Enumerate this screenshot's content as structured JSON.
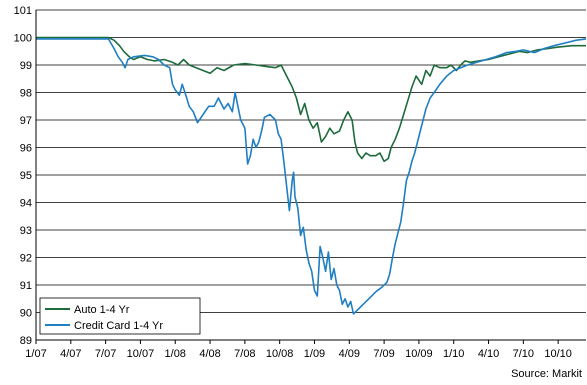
{
  "chart_data": {
    "type": "line",
    "title": "",
    "xlabel": "",
    "ylabel": "",
    "ylim": [
      89,
      101
    ],
    "yticks": [
      89,
      90,
      91,
      92,
      93,
      94,
      95,
      96,
      97,
      98,
      99,
      100,
      101
    ],
    "xlim": [
      2007.0,
      2010.95
    ],
    "xticks": [
      {
        "label": "1/07",
        "value": 2007.0
      },
      {
        "label": "4/07",
        "value": 2007.25
      },
      {
        "label": "7/07",
        "value": 2007.5
      },
      {
        "label": "10/07",
        "value": 2007.75
      },
      {
        "label": "1/08",
        "value": 2008.0
      },
      {
        "label": "4/08",
        "value": 2008.25
      },
      {
        "label": "7/08",
        "value": 2008.5
      },
      {
        "label": "10/08",
        "value": 2008.75
      },
      {
        "label": "1/09",
        "value": 2009.0
      },
      {
        "label": "4/09",
        "value": 2009.25
      },
      {
        "label": "7/09",
        "value": 2009.5
      },
      {
        "label": "10/09",
        "value": 2009.75
      },
      {
        "label": "1/10",
        "value": 2010.0
      },
      {
        "label": "4/10",
        "value": 2010.25
      },
      {
        "label": "7/10",
        "value": 2010.5
      },
      {
        "label": "10/10",
        "value": 2010.75
      }
    ],
    "grid": {
      "horizontal": true,
      "vertical": false
    },
    "legend_position": "bottom-left",
    "source_note": "Source: Markit",
    "series": [
      {
        "name": "Auto 1-4 Yr",
        "color": "#1e6b3c",
        "points": [
          [
            2007.0,
            100.0
          ],
          [
            2007.3,
            100.0
          ],
          [
            2007.52,
            100.0
          ],
          [
            2007.56,
            99.9
          ],
          [
            2007.6,
            99.7
          ],
          [
            2007.63,
            99.5
          ],
          [
            2007.67,
            99.3
          ],
          [
            2007.7,
            99.2
          ],
          [
            2007.75,
            99.3
          ],
          [
            2007.8,
            99.2
          ],
          [
            2007.85,
            99.15
          ],
          [
            2007.92,
            99.2
          ],
          [
            2007.98,
            99.1
          ],
          [
            2008.02,
            99.0
          ],
          [
            2008.06,
            99.2
          ],
          [
            2008.1,
            99.0
          ],
          [
            2008.15,
            98.9
          ],
          [
            2008.2,
            98.8
          ],
          [
            2008.25,
            98.7
          ],
          [
            2008.3,
            98.9
          ],
          [
            2008.35,
            98.8
          ],
          [
            2008.42,
            99.0
          ],
          [
            2008.5,
            99.05
          ],
          [
            2008.58,
            99.0
          ],
          [
            2008.65,
            98.95
          ],
          [
            2008.72,
            98.9
          ],
          [
            2008.76,
            99.0
          ],
          [
            2008.8,
            98.6
          ],
          [
            2008.84,
            98.2
          ],
          [
            2008.87,
            97.8
          ],
          [
            2008.9,
            97.2
          ],
          [
            2008.93,
            97.6
          ],
          [
            2008.96,
            97.0
          ],
          [
            2008.99,
            96.7
          ],
          [
            2009.02,
            96.9
          ],
          [
            2009.05,
            96.2
          ],
          [
            2009.08,
            96.4
          ],
          [
            2009.11,
            96.7
          ],
          [
            2009.14,
            96.5
          ],
          [
            2009.18,
            96.6
          ],
          [
            2009.21,
            97.0
          ],
          [
            2009.24,
            97.3
          ],
          [
            2009.27,
            97.0
          ],
          [
            2009.29,
            96.2
          ],
          [
            2009.31,
            95.8
          ],
          [
            2009.34,
            95.6
          ],
          [
            2009.37,
            95.8
          ],
          [
            2009.4,
            95.7
          ],
          [
            2009.44,
            95.7
          ],
          [
            2009.47,
            95.8
          ],
          [
            2009.5,
            95.5
          ],
          [
            2009.53,
            95.6
          ],
          [
            2009.55,
            96.0
          ],
          [
            2009.58,
            96.3
          ],
          [
            2009.61,
            96.7
          ],
          [
            2009.64,
            97.2
          ],
          [
            2009.67,
            97.7
          ],
          [
            2009.7,
            98.2
          ],
          [
            2009.73,
            98.6
          ],
          [
            2009.77,
            98.3
          ],
          [
            2009.8,
            98.8
          ],
          [
            2009.83,
            98.6
          ],
          [
            2009.86,
            99.0
          ],
          [
            2009.9,
            98.9
          ],
          [
            2009.95,
            98.9
          ],
          [
            2009.98,
            99.0
          ],
          [
            2010.02,
            98.8
          ],
          [
            2010.05,
            99.0
          ],
          [
            2010.08,
            99.15
          ],
          [
            2010.12,
            99.1
          ],
          [
            2010.18,
            99.15
          ],
          [
            2010.25,
            99.2
          ],
          [
            2010.32,
            99.3
          ],
          [
            2010.4,
            99.4
          ],
          [
            2010.47,
            99.5
          ],
          [
            2010.53,
            99.45
          ],
          [
            2010.6,
            99.55
          ],
          [
            2010.68,
            99.6
          ],
          [
            2010.75,
            99.65
          ],
          [
            2010.85,
            99.7
          ],
          [
            2010.95,
            99.7
          ]
        ]
      },
      {
        "name": "Credit Card 1-4 Yr",
        "color": "#1f7fc2",
        "points": [
          [
            2007.0,
            99.95
          ],
          [
            2007.3,
            99.95
          ],
          [
            2007.52,
            99.95
          ],
          [
            2007.56,
            99.6
          ],
          [
            2007.59,
            99.3
          ],
          [
            2007.62,
            99.1
          ],
          [
            2007.64,
            98.9
          ],
          [
            2007.66,
            99.2
          ],
          [
            2007.7,
            99.3
          ],
          [
            2007.78,
            99.35
          ],
          [
            2007.84,
            99.3
          ],
          [
            2007.88,
            99.2
          ],
          [
            2007.92,
            99.0
          ],
          [
            2007.96,
            98.9
          ],
          [
            2007.98,
            98.3
          ],
          [
            2008.0,
            98.1
          ],
          [
            2008.03,
            97.9
          ],
          [
            2008.05,
            98.3
          ],
          [
            2008.07,
            98.0
          ],
          [
            2008.1,
            97.5
          ],
          [
            2008.13,
            97.3
          ],
          [
            2008.16,
            96.9
          ],
          [
            2008.2,
            97.2
          ],
          [
            2008.24,
            97.5
          ],
          [
            2008.28,
            97.5
          ],
          [
            2008.31,
            97.8
          ],
          [
            2008.35,
            97.4
          ],
          [
            2008.38,
            97.6
          ],
          [
            2008.41,
            97.3
          ],
          [
            2008.43,
            98.0
          ],
          [
            2008.45,
            97.5
          ],
          [
            2008.47,
            97.0
          ],
          [
            2008.5,
            96.7
          ],
          [
            2008.52,
            95.4
          ],
          [
            2008.54,
            95.7
          ],
          [
            2008.56,
            96.3
          ],
          [
            2008.58,
            96.0
          ],
          [
            2008.6,
            96.2
          ],
          [
            2008.62,
            96.6
          ],
          [
            2008.64,
            97.1
          ],
          [
            2008.68,
            97.2
          ],
          [
            2008.72,
            97.0
          ],
          [
            2008.74,
            96.5
          ],
          [
            2008.76,
            96.3
          ],
          [
            2008.78,
            95.5
          ],
          [
            2008.8,
            94.6
          ],
          [
            2008.82,
            93.7
          ],
          [
            2008.84,
            94.8
          ],
          [
            2008.85,
            95.1
          ],
          [
            2008.86,
            94.2
          ],
          [
            2008.88,
            93.8
          ],
          [
            2008.9,
            92.8
          ],
          [
            2008.92,
            93.1
          ],
          [
            2008.94,
            92.3
          ],
          [
            2008.96,
            91.8
          ],
          [
            2008.98,
            91.5
          ],
          [
            2009.0,
            90.8
          ],
          [
            2009.02,
            90.6
          ],
          [
            2009.04,
            92.4
          ],
          [
            2009.06,
            92.0
          ],
          [
            2009.08,
            91.5
          ],
          [
            2009.1,
            92.2
          ],
          [
            2009.12,
            91.2
          ],
          [
            2009.14,
            91.6
          ],
          [
            2009.16,
            91.0
          ],
          [
            2009.18,
            90.8
          ],
          [
            2009.2,
            90.3
          ],
          [
            2009.22,
            90.5
          ],
          [
            2009.24,
            90.2
          ],
          [
            2009.26,
            90.4
          ],
          [
            2009.28,
            89.95
          ],
          [
            2009.32,
            90.15
          ],
          [
            2009.36,
            90.35
          ],
          [
            2009.4,
            90.55
          ],
          [
            2009.44,
            90.75
          ],
          [
            2009.48,
            90.9
          ],
          [
            2009.52,
            91.1
          ],
          [
            2009.54,
            91.4
          ],
          [
            2009.56,
            92.0
          ],
          [
            2009.58,
            92.5
          ],
          [
            2009.6,
            92.9
          ],
          [
            2009.62,
            93.3
          ],
          [
            2009.64,
            94.0
          ],
          [
            2009.66,
            94.8
          ],
          [
            2009.68,
            95.1
          ],
          [
            2009.7,
            95.5
          ],
          [
            2009.72,
            95.8
          ],
          [
            2009.74,
            96.2
          ],
          [
            2009.76,
            96.6
          ],
          [
            2009.78,
            97.0
          ],
          [
            2009.8,
            97.4
          ],
          [
            2009.83,
            97.8
          ],
          [
            2009.86,
            98.0
          ],
          [
            2009.9,
            98.3
          ],
          [
            2009.95,
            98.6
          ],
          [
            2010.0,
            98.8
          ],
          [
            2010.05,
            98.9
          ],
          [
            2010.1,
            99.0
          ],
          [
            2010.2,
            99.15
          ],
          [
            2010.3,
            99.3
          ],
          [
            2010.38,
            99.45
          ],
          [
            2010.45,
            99.5
          ],
          [
            2010.5,
            99.55
          ],
          [
            2010.58,
            99.45
          ],
          [
            2010.65,
            99.6
          ],
          [
            2010.72,
            99.7
          ],
          [
            2010.8,
            99.8
          ],
          [
            2010.88,
            99.9
          ],
          [
            2010.95,
            99.95
          ]
        ]
      }
    ]
  }
}
